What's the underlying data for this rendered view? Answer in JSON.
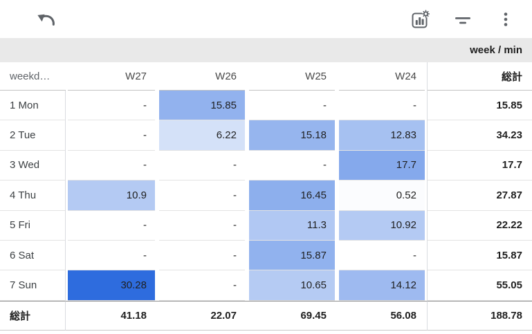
{
  "toolbar": {
    "icon_color": "#5F6368",
    "buttons": [
      {
        "name": "undo",
        "icon": "undo-icon"
      },
      {
        "name": "chart-settings",
        "icon": "chart-settings-icon"
      },
      {
        "name": "filter",
        "icon": "filter-icon"
      },
      {
        "name": "more",
        "icon": "more-vert-icon"
      }
    ]
  },
  "chart_data": {
    "type": "heatmap",
    "title": "week / min",
    "row_header": "weekd…",
    "row_dimension_note": "weekday rows, truncated header label as rendered",
    "columns": [
      "W27",
      "W26",
      "W25",
      "W24"
    ],
    "rows": [
      "1 Mon",
      "2 Tue",
      "3 Wed",
      "4 Thu",
      "5 Fri",
      "6 Sat",
      "7 Sun"
    ],
    "values": [
      [
        null,
        15.85,
        null,
        null
      ],
      [
        null,
        6.22,
        15.18,
        12.83
      ],
      [
        null,
        null,
        null,
        17.7
      ],
      [
        10.9,
        null,
        16.45,
        0.52
      ],
      [
        null,
        null,
        11.3,
        10.92
      ],
      [
        null,
        null,
        15.87,
        null
      ],
      [
        30.28,
        null,
        10.65,
        14.12
      ]
    ],
    "row_totals": [
      15.85,
      34.23,
      17.7,
      27.87,
      22.22,
      15.87,
      55.05
    ],
    "col_totals": [
      41.18,
      22.07,
      69.45,
      56.08
    ],
    "grand_total": 188.78,
    "total_label": "総計",
    "null_display": "-",
    "color_scale": {
      "min_color": "#FFFFFF",
      "max_color": "#2E6CDE",
      "min": 0,
      "max": 30.28
    },
    "legend_position": "none",
    "grid": true
  }
}
